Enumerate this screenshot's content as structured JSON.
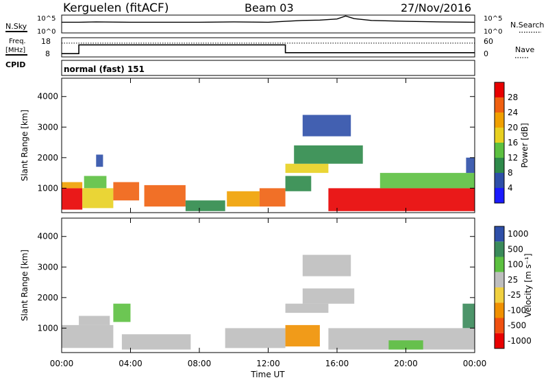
{
  "header": {
    "station": "Kerguelen (fitACF)",
    "beam": "Beam 03",
    "date": "27/Nov/2016"
  },
  "nsky_panel": {
    "left_label": "N.Sky",
    "right_label": "N.Search",
    "left_ticks": [
      "10^5",
      "10^0"
    ],
    "right_ticks": [
      "10^5",
      "10^0"
    ]
  },
  "freq_panel": {
    "left_label_line1": "Freq.",
    "left_label_line2": "[MHz]",
    "right_label": "Nave",
    "left_ticks": [
      "18",
      "8"
    ],
    "right_ticks": [
      "60",
      "0"
    ],
    "cpid_label": "CPID"
  },
  "cpid_panel": {
    "text": "normal (fast) 151"
  },
  "colors": {
    "power": [
      "#1a1aff",
      "#2e4fa8",
      "#2e8a4a",
      "#5cc040",
      "#e8d020",
      "#f0a000",
      "#f06010",
      "#e80000"
    ],
    "velocity": [
      "#2e4fa8",
      "#3a8a5a",
      "#5cc040",
      "#bebebe",
      "#f0d040",
      "#f09000",
      "#f05010",
      "#e80000"
    ]
  },
  "chart_data": [
    {
      "type": "heatmap",
      "name": "power-panel",
      "ylabel": "Slant Range [km]",
      "xlabel": "Time UT",
      "x_ticks": [
        "00:00",
        "04:00",
        "08:00",
        "12:00",
        "16:00",
        "20:00",
        "00:00"
      ],
      "y_ticks": [
        1000,
        2000,
        3000,
        4000
      ],
      "xlim": [
        0,
        24
      ],
      "ylim": [
        200,
        4600
      ],
      "colorbar": {
        "label": "Power [dB]",
        "ticks": [
          "4",
          "8",
          "12",
          "16",
          "20",
          "24",
          "28"
        ]
      },
      "bands": [
        {
          "t0": 0.0,
          "t1": 1.2,
          "r0": 300,
          "r1": 1000,
          "level": 7
        },
        {
          "t0": 0.0,
          "t1": 1.2,
          "r0": 1000,
          "r1": 1200,
          "level": 5
        },
        {
          "t0": 1.2,
          "t1": 3.0,
          "r0": 350,
          "r1": 1000,
          "level": 4
        },
        {
          "t0": 1.3,
          "t1": 2.6,
          "r0": 1000,
          "r1": 1400,
          "level": 3
        },
        {
          "t0": 2.0,
          "t1": 2.4,
          "r0": 1700,
          "r1": 2100,
          "level": 1
        },
        {
          "t0": 3.0,
          "t1": 4.5,
          "r0": 600,
          "r1": 1200,
          "level": 6
        },
        {
          "t0": 4.8,
          "t1": 7.2,
          "r0": 400,
          "r1": 1100,
          "level": 6
        },
        {
          "t0": 7.2,
          "t1": 9.5,
          "r0": 250,
          "r1": 600,
          "level": 2
        },
        {
          "t0": 9.6,
          "t1": 11.5,
          "r0": 400,
          "r1": 900,
          "level": 5
        },
        {
          "t0": 11.5,
          "t1": 13.0,
          "r0": 400,
          "r1": 1000,
          "level": 6
        },
        {
          "t0": 13.0,
          "t1": 15.5,
          "r0": 1500,
          "r1": 1800,
          "level": 4
        },
        {
          "t0": 13.0,
          "t1": 14.5,
          "r0": 900,
          "r1": 1400,
          "level": 2
        },
        {
          "t0": 13.5,
          "t1": 17.5,
          "r0": 1800,
          "r1": 2400,
          "level": 2
        },
        {
          "t0": 14.0,
          "t1": 16.8,
          "r0": 2700,
          "r1": 3400,
          "level": 1
        },
        {
          "t0": 15.5,
          "t1": 24.0,
          "r0": 250,
          "r1": 1000,
          "level": 7
        },
        {
          "t0": 18.5,
          "t1": 24.0,
          "r0": 1000,
          "r1": 1500,
          "level": 3
        },
        {
          "t0": 23.5,
          "t1": 24.0,
          "r0": 1500,
          "r1": 2000,
          "level": 1
        }
      ]
    },
    {
      "type": "heatmap",
      "name": "velocity-panel",
      "ylabel": "Slant Range [km]",
      "xlabel": "Time UT",
      "x_ticks": [
        "00:00",
        "04:00",
        "08:00",
        "12:00",
        "16:00",
        "20:00",
        "00:00"
      ],
      "y_ticks": [
        1000,
        2000,
        3000,
        4000
      ],
      "xlim": [
        0,
        24
      ],
      "ylim": [
        200,
        4600
      ],
      "colorbar": {
        "label": "Velocity [m s⁻¹]",
        "ticks": [
          "1000",
          "500",
          "100",
          "25",
          "-25",
          "-100",
          "-500",
          "-1000"
        ]
      },
      "bands": [
        {
          "t0": 0.0,
          "t1": 3.0,
          "r0": 350,
          "r1": 1100,
          "level": 3
        },
        {
          "t0": 1.0,
          "t1": 2.8,
          "r0": 1100,
          "r1": 1400,
          "level": 3
        },
        {
          "t0": 3.0,
          "t1": 4.0,
          "r0": 1200,
          "r1": 1800,
          "level": 2
        },
        {
          "t0": 3.5,
          "t1": 7.5,
          "r0": 300,
          "r1": 800,
          "level": 3
        },
        {
          "t0": 9.5,
          "t1": 13.0,
          "r0": 350,
          "r1": 1000,
          "level": 3
        },
        {
          "t0": 13.0,
          "t1": 15.5,
          "r0": 1500,
          "r1": 1800,
          "level": 3
        },
        {
          "t0": 13.0,
          "t1": 15.0,
          "r0": 400,
          "r1": 1100,
          "level": 5
        },
        {
          "t0": 14.0,
          "t1": 17.0,
          "r0": 1800,
          "r1": 2300,
          "level": 3
        },
        {
          "t0": 14.0,
          "t1": 16.8,
          "r0": 2700,
          "r1": 3400,
          "level": 3
        },
        {
          "t0": 15.5,
          "t1": 24.0,
          "r0": 300,
          "r1": 1000,
          "level": 3
        },
        {
          "t0": 19.0,
          "t1": 21.0,
          "r0": 300,
          "r1": 600,
          "level": 2
        },
        {
          "t0": 23.3,
          "t1": 24.0,
          "r0": 1000,
          "r1": 1800,
          "level": 1
        }
      ]
    }
  ],
  "nsky_trace": {
    "x": [
      0,
      1,
      2,
      4,
      6,
      8,
      10,
      12,
      13,
      14,
      15,
      16,
      16.5,
      17,
      18,
      20,
      22,
      24
    ],
    "y": [
      0.6,
      0.6,
      0.62,
      0.6,
      0.6,
      0.6,
      0.62,
      0.6,
      0.65,
      0.7,
      0.72,
      0.78,
      0.95,
      0.8,
      0.7,
      0.65,
      0.62,
      0.6
    ]
  },
  "freq_trace": {
    "x": [
      0,
      1,
      1,
      13,
      13,
      24
    ],
    "y": [
      9.7,
      9.7,
      14.3,
      14.3,
      10.2,
      10.2
    ],
    "nave_dotted": 43
  }
}
